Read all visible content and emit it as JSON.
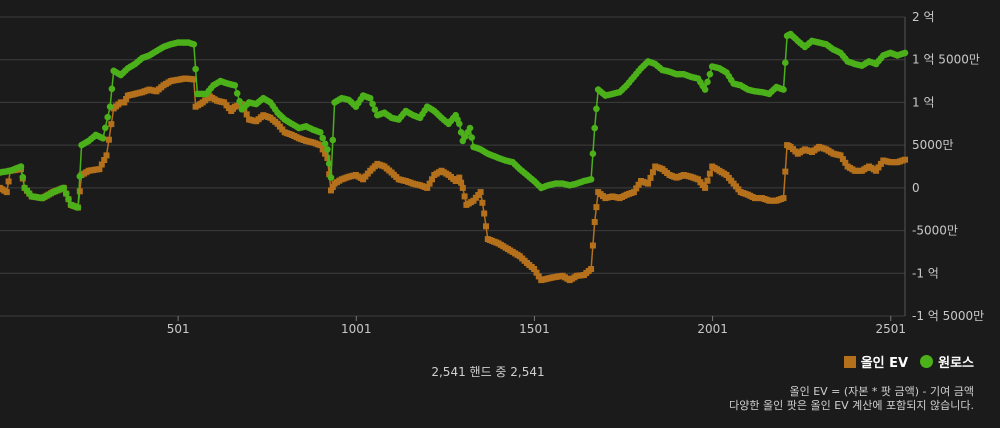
{
  "chart_data": {
    "type": "line",
    "title": "",
    "xlabel": "",
    "ylabel": "",
    "xlim": [
      1,
      2541
    ],
    "ylim": [
      -150000000,
      200000000
    ],
    "x_ticks": [
      {
        "value": 501,
        "label": "501"
      },
      {
        "value": 1001,
        "label": "1001"
      },
      {
        "value": 1501,
        "label": "1501"
      },
      {
        "value": 2001,
        "label": "2001"
      },
      {
        "value": 2501,
        "label": "2501"
      }
    ],
    "y_ticks": [
      {
        "value": 200000000,
        "label": "2 억"
      },
      {
        "value": 150000000,
        "label": "1 억 5000만"
      },
      {
        "value": 100000000,
        "label": "1 억"
      },
      {
        "value": 50000000,
        "label": "5000만"
      },
      {
        "value": 0,
        "label": "0"
      },
      {
        "value": -50000000,
        "label": "-5000만"
      },
      {
        "value": -100000000,
        "label": "-1 억"
      },
      {
        "value": -150000000,
        "label": "-1 억 5000만"
      }
    ],
    "grid": true,
    "legend_position": "bottom-right",
    "series": [
      {
        "name": "올인 EV",
        "color": "#b5701c",
        "marker": "square",
        "points": [
          [
            1,
            0
          ],
          [
            20,
            -5000000
          ],
          [
            30,
            20000000
          ],
          [
            60,
            22000000
          ],
          [
            70,
            0
          ],
          [
            90,
            -10000000
          ],
          [
            120,
            -12000000
          ],
          [
            150,
            -5000000
          ],
          [
            180,
            0
          ],
          [
            200,
            -20000000
          ],
          [
            220,
            -23000000
          ],
          [
            230,
            15000000
          ],
          [
            250,
            20000000
          ],
          [
            280,
            22000000
          ],
          [
            300,
            38000000
          ],
          [
            320,
            93000000
          ],
          [
            340,
            100000000
          ],
          [
            350,
            100000000
          ],
          [
            360,
            108000000
          ],
          [
            380,
            110000000
          ],
          [
            400,
            112000000
          ],
          [
            420,
            115000000
          ],
          [
            440,
            113000000
          ],
          [
            460,
            120000000
          ],
          [
            480,
            125000000
          ],
          [
            520,
            128000000
          ],
          [
            545,
            127000000
          ],
          [
            550,
            95000000
          ],
          [
            570,
            100000000
          ],
          [
            590,
            107000000
          ],
          [
            610,
            102000000
          ],
          [
            630,
            100000000
          ],
          [
            650,
            90000000
          ],
          [
            660,
            95000000
          ],
          [
            680,
            98000000
          ],
          [
            700,
            80000000
          ],
          [
            720,
            78000000
          ],
          [
            740,
            85000000
          ],
          [
            760,
            82000000
          ],
          [
            780,
            75000000
          ],
          [
            800,
            65000000
          ],
          [
            820,
            62000000
          ],
          [
            840,
            58000000
          ],
          [
            860,
            55000000
          ],
          [
            880,
            53000000
          ],
          [
            900,
            50000000
          ],
          [
            920,
            35000000
          ],
          [
            930,
            -3000000
          ],
          [
            940,
            5000000
          ],
          [
            960,
            10000000
          ],
          [
            980,
            13000000
          ],
          [
            1000,
            15000000
          ],
          [
            1020,
            10000000
          ],
          [
            1040,
            20000000
          ],
          [
            1060,
            28000000
          ],
          [
            1080,
            25000000
          ],
          [
            1100,
            18000000
          ],
          [
            1120,
            10000000
          ],
          [
            1140,
            8000000
          ],
          [
            1160,
            5000000
          ],
          [
            1180,
            3000000
          ],
          [
            1200,
            0
          ],
          [
            1220,
            15000000
          ],
          [
            1240,
            20000000
          ],
          [
            1260,
            15000000
          ],
          [
            1280,
            8000000
          ],
          [
            1290,
            12000000
          ],
          [
            1300,
            0
          ],
          [
            1310,
            -20000000
          ],
          [
            1330,
            -15000000
          ],
          [
            1350,
            -5000000
          ],
          [
            1360,
            -30000000
          ],
          [
            1370,
            -60000000
          ],
          [
            1400,
            -65000000
          ],
          [
            1420,
            -70000000
          ],
          [
            1440,
            -75000000
          ],
          [
            1460,
            -80000000
          ],
          [
            1480,
            -88000000
          ],
          [
            1500,
            -95000000
          ],
          [
            1520,
            -108000000
          ],
          [
            1550,
            -105000000
          ],
          [
            1580,
            -103000000
          ],
          [
            1600,
            -108000000
          ],
          [
            1620,
            -103000000
          ],
          [
            1640,
            -102000000
          ],
          [
            1660,
            -95000000
          ],
          [
            1670,
            -40000000
          ],
          [
            1680,
            -5000000
          ],
          [
            1700,
            -12000000
          ],
          [
            1720,
            -10000000
          ],
          [
            1740,
            -12000000
          ],
          [
            1760,
            -8000000
          ],
          [
            1780,
            -5000000
          ],
          [
            1800,
            8000000
          ],
          [
            1820,
            5000000
          ],
          [
            1840,
            25000000
          ],
          [
            1860,
            22000000
          ],
          [
            1880,
            15000000
          ],
          [
            1900,
            12000000
          ],
          [
            1920,
            15000000
          ],
          [
            1940,
            13000000
          ],
          [
            1960,
            10000000
          ],
          [
            1980,
            0
          ],
          [
            2000,
            25000000
          ],
          [
            2020,
            20000000
          ],
          [
            2040,
            15000000
          ],
          [
            2060,
            5000000
          ],
          [
            2080,
            -5000000
          ],
          [
            2100,
            -8000000
          ],
          [
            2120,
            -12000000
          ],
          [
            2140,
            -12000000
          ],
          [
            2160,
            -15000000
          ],
          [
            2180,
            -15000000
          ],
          [
            2200,
            -12000000
          ],
          [
            2210,
            50000000
          ],
          [
            2220,
            48000000
          ],
          [
            2240,
            40000000
          ],
          [
            2260,
            45000000
          ],
          [
            2280,
            42000000
          ],
          [
            2300,
            48000000
          ],
          [
            2320,
            45000000
          ],
          [
            2340,
            40000000
          ],
          [
            2360,
            38000000
          ],
          [
            2380,
            25000000
          ],
          [
            2400,
            20000000
          ],
          [
            2420,
            20000000
          ],
          [
            2440,
            25000000
          ],
          [
            2460,
            20000000
          ],
          [
            2480,
            32000000
          ],
          [
            2500,
            30000000
          ],
          [
            2520,
            30000000
          ],
          [
            2541,
            33000000
          ]
        ]
      },
      {
        "name": "원로스",
        "color": "#4bb019",
        "marker": "circle",
        "points": [
          [
            1,
            18000000
          ],
          [
            30,
            20000000
          ],
          [
            60,
            25000000
          ],
          [
            70,
            0
          ],
          [
            90,
            -10000000
          ],
          [
            120,
            -12000000
          ],
          [
            150,
            -5000000
          ],
          [
            180,
            0
          ],
          [
            200,
            -20000000
          ],
          [
            220,
            -23000000
          ],
          [
            230,
            50000000
          ],
          [
            250,
            55000000
          ],
          [
            270,
            62000000
          ],
          [
            290,
            58000000
          ],
          [
            310,
            95000000
          ],
          [
            320,
            137000000
          ],
          [
            340,
            132000000
          ],
          [
            360,
            140000000
          ],
          [
            380,
            145000000
          ],
          [
            400,
            152000000
          ],
          [
            420,
            155000000
          ],
          [
            440,
            160000000
          ],
          [
            460,
            165000000
          ],
          [
            480,
            168000000
          ],
          [
            500,
            170000000
          ],
          [
            530,
            170000000
          ],
          [
            545,
            168000000
          ],
          [
            555,
            110000000
          ],
          [
            580,
            110000000
          ],
          [
            600,
            120000000
          ],
          [
            620,
            125000000
          ],
          [
            640,
            122000000
          ],
          [
            660,
            120000000
          ],
          [
            680,
            92000000
          ],
          [
            700,
            100000000
          ],
          [
            720,
            98000000
          ],
          [
            740,
            105000000
          ],
          [
            760,
            100000000
          ],
          [
            780,
            88000000
          ],
          [
            800,
            80000000
          ],
          [
            820,
            75000000
          ],
          [
            840,
            70000000
          ],
          [
            860,
            72000000
          ],
          [
            880,
            68000000
          ],
          [
            900,
            65000000
          ],
          [
            920,
            45000000
          ],
          [
            930,
            12000000
          ],
          [
            940,
            100000000
          ],
          [
            960,
            105000000
          ],
          [
            980,
            103000000
          ],
          [
            1000,
            95000000
          ],
          [
            1020,
            108000000
          ],
          [
            1040,
            105000000
          ],
          [
            1060,
            85000000
          ],
          [
            1080,
            88000000
          ],
          [
            1100,
            82000000
          ],
          [
            1120,
            80000000
          ],
          [
            1140,
            90000000
          ],
          [
            1160,
            85000000
          ],
          [
            1180,
            82000000
          ],
          [
            1200,
            95000000
          ],
          [
            1220,
            90000000
          ],
          [
            1240,
            82000000
          ],
          [
            1260,
            75000000
          ],
          [
            1280,
            85000000
          ],
          [
            1290,
            75000000
          ],
          [
            1300,
            55000000
          ],
          [
            1320,
            70000000
          ],
          [
            1330,
            48000000
          ],
          [
            1350,
            45000000
          ],
          [
            1370,
            40000000
          ],
          [
            1400,
            35000000
          ],
          [
            1420,
            32000000
          ],
          [
            1440,
            30000000
          ],
          [
            1460,
            22000000
          ],
          [
            1480,
            15000000
          ],
          [
            1500,
            8000000
          ],
          [
            1520,
            0
          ],
          [
            1540,
            3000000
          ],
          [
            1560,
            5000000
          ],
          [
            1580,
            5000000
          ],
          [
            1600,
            3000000
          ],
          [
            1620,
            5000000
          ],
          [
            1640,
            8000000
          ],
          [
            1660,
            10000000
          ],
          [
            1670,
            70000000
          ],
          [
            1680,
            115000000
          ],
          [
            1700,
            108000000
          ],
          [
            1720,
            110000000
          ],
          [
            1740,
            112000000
          ],
          [
            1760,
            120000000
          ],
          [
            1780,
            130000000
          ],
          [
            1800,
            140000000
          ],
          [
            1820,
            148000000
          ],
          [
            1840,
            145000000
          ],
          [
            1860,
            138000000
          ],
          [
            1880,
            136000000
          ],
          [
            1900,
            133000000
          ],
          [
            1920,
            133000000
          ],
          [
            1940,
            130000000
          ],
          [
            1960,
            128000000
          ],
          [
            1980,
            115000000
          ],
          [
            2000,
            142000000
          ],
          [
            2020,
            140000000
          ],
          [
            2040,
            135000000
          ],
          [
            2060,
            122000000
          ],
          [
            2080,
            120000000
          ],
          [
            2100,
            115000000
          ],
          [
            2120,
            113000000
          ],
          [
            2140,
            112000000
          ],
          [
            2160,
            110000000
          ],
          [
            2180,
            118000000
          ],
          [
            2200,
            115000000
          ],
          [
            2210,
            178000000
          ],
          [
            2220,
            180000000
          ],
          [
            2240,
            172000000
          ],
          [
            2260,
            165000000
          ],
          [
            2280,
            172000000
          ],
          [
            2300,
            170000000
          ],
          [
            2320,
            168000000
          ],
          [
            2340,
            162000000
          ],
          [
            2360,
            158000000
          ],
          [
            2380,
            148000000
          ],
          [
            2400,
            145000000
          ],
          [
            2420,
            143000000
          ],
          [
            2440,
            148000000
          ],
          [
            2460,
            145000000
          ],
          [
            2480,
            155000000
          ],
          [
            2500,
            158000000
          ],
          [
            2520,
            155000000
          ],
          [
            2541,
            158000000
          ]
        ]
      }
    ]
  },
  "legend": {
    "items": [
      {
        "label": "올인 EV",
        "color": "#b5701c"
      },
      {
        "label": "원로스",
        "color": "#4bb019"
      }
    ]
  },
  "summary": {
    "text": "2,541 핸드 중 2,541"
  },
  "note": {
    "line1": "올인 EV = (자본 * 팟 금액) - 기여 금액",
    "line2": "다양한 올인 팟은 올인 EV 계산에 포함되지 않습니다."
  }
}
